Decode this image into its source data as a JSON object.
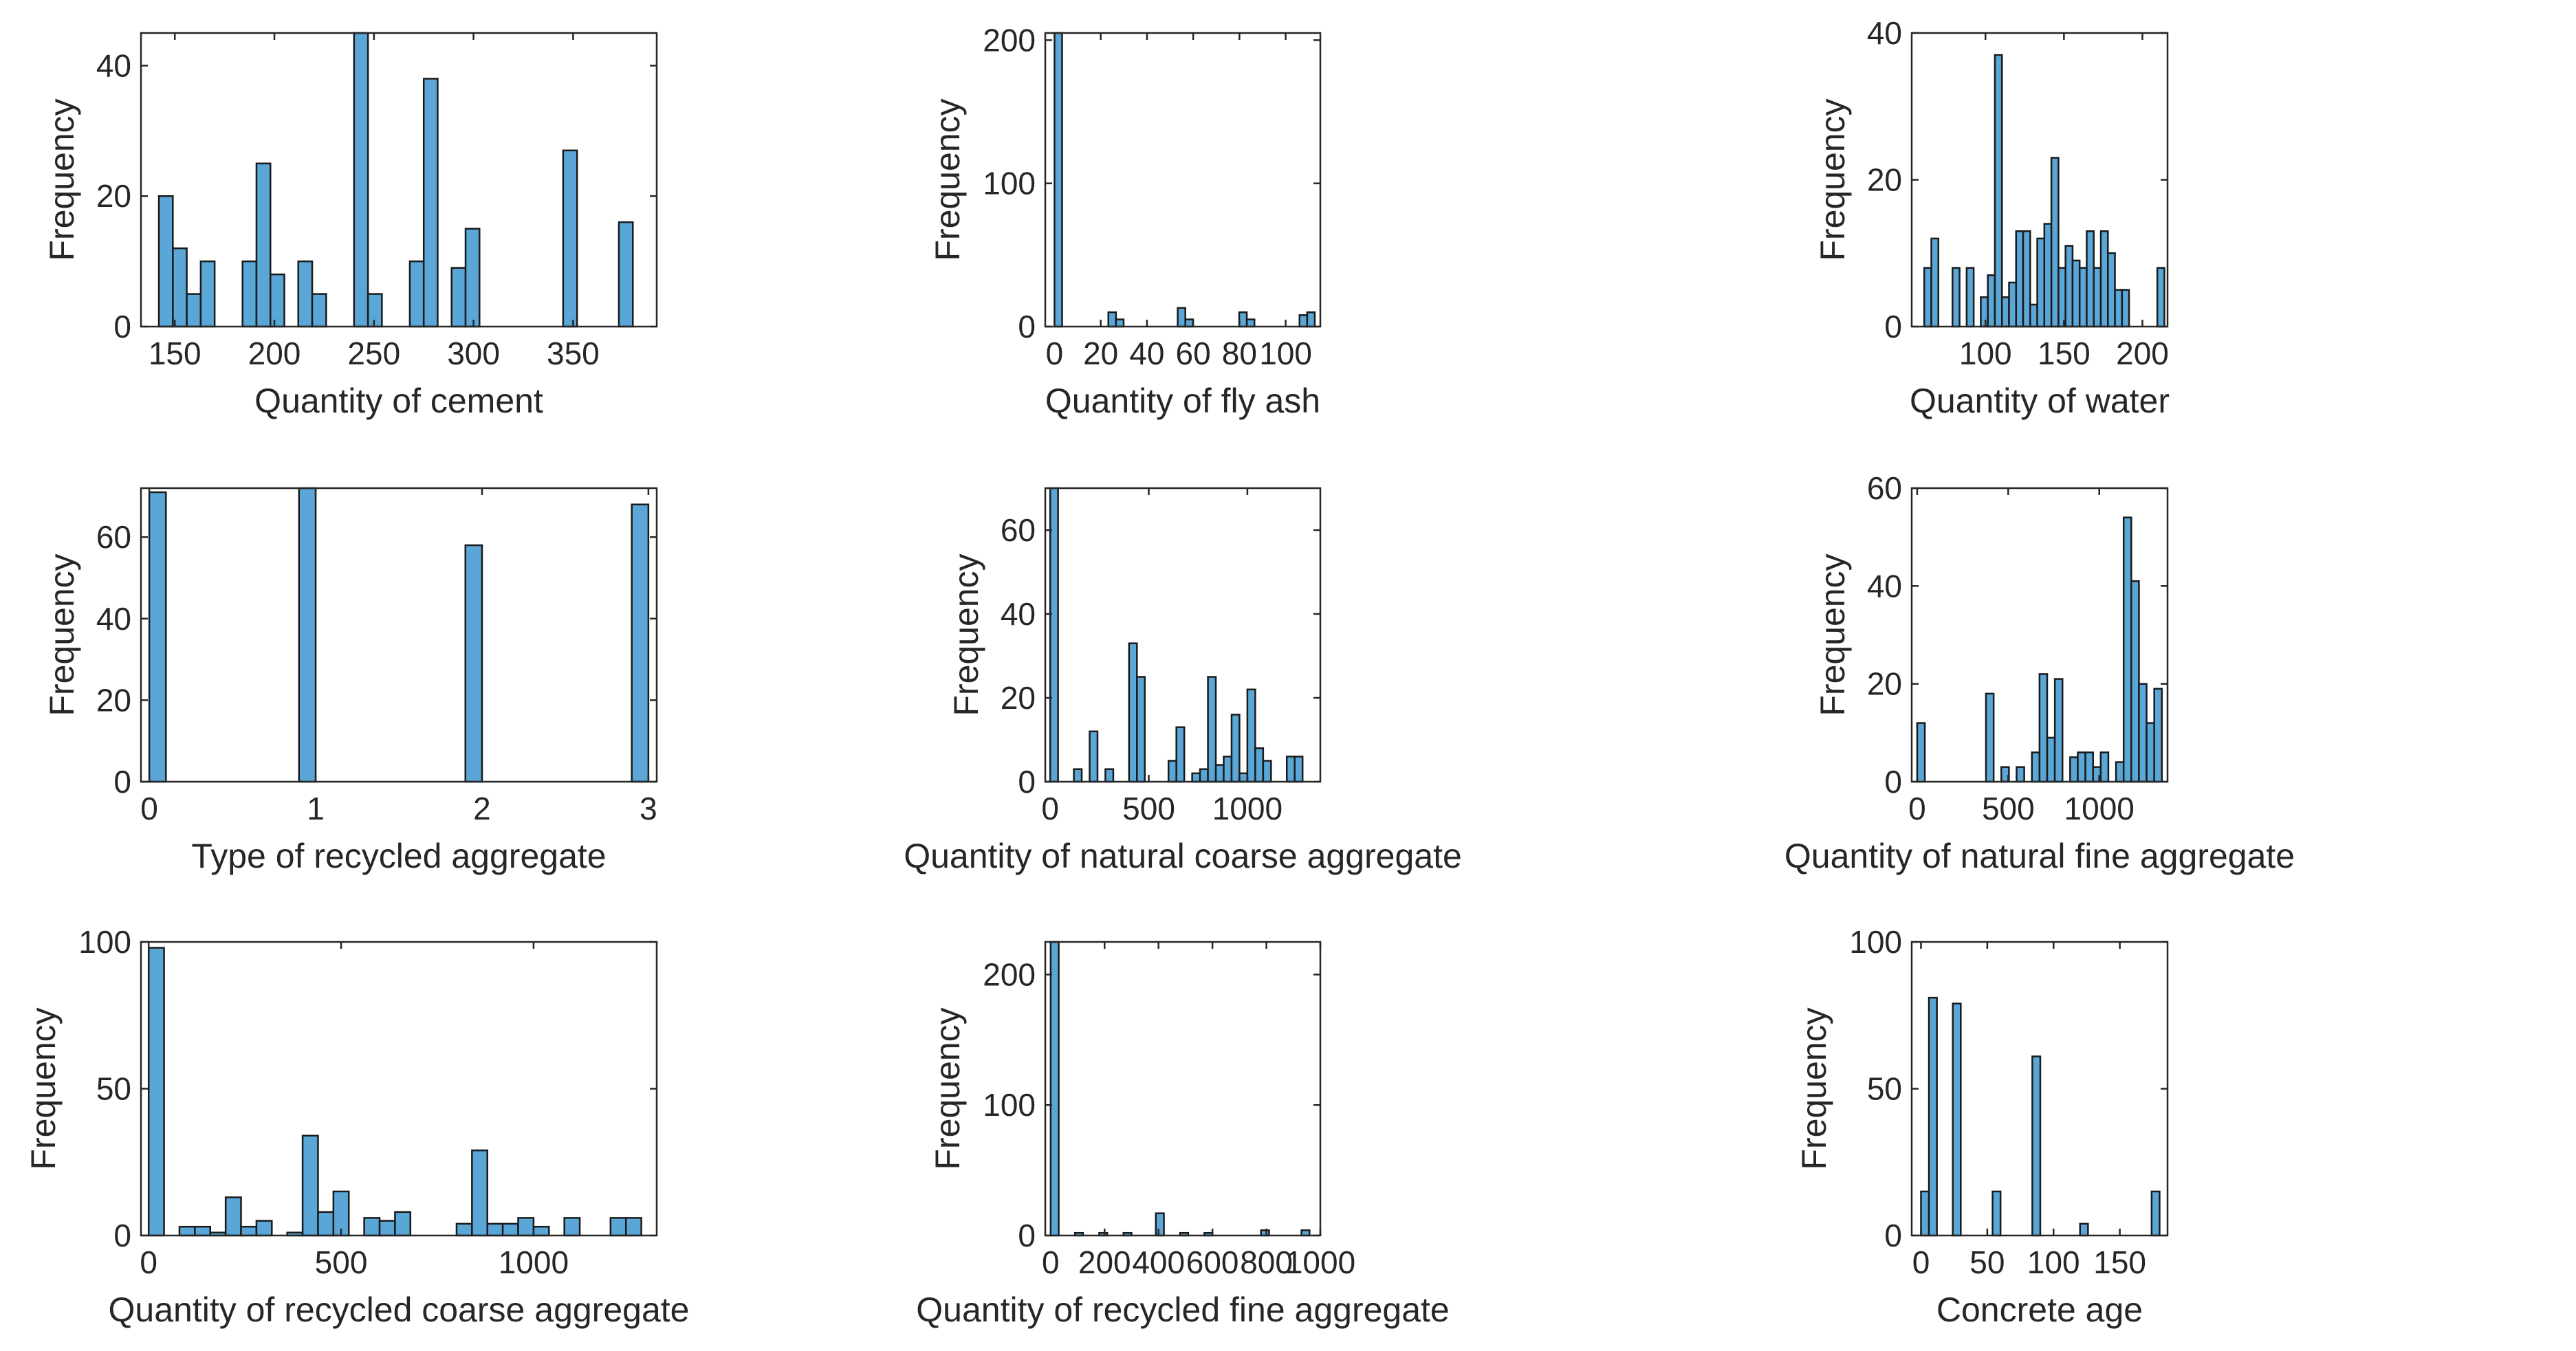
{
  "style": {
    "bar_color": "#5aa6d6",
    "bar_edge": "#1a1a1a",
    "axis_color": "#262626"
  },
  "chart_data": [
    {
      "type": "histogram",
      "xlabel": "Quantity of cement",
      "ylabel": "Frequency",
      "xlim": [
        133,
        392
      ],
      "ylim": [
        0,
        45
      ],
      "xticks": [
        150,
        200,
        250,
        300,
        350
      ],
      "yticks": [
        0,
        20,
        40
      ],
      "bins": [
        {
          "x0": 142,
          "x1": 149,
          "count": 20
        },
        {
          "x0": 149,
          "x1": 156,
          "count": 12
        },
        {
          "x0": 156,
          "x1": 163,
          "count": 5
        },
        {
          "x0": 163,
          "x1": 170,
          "count": 10
        },
        {
          "x0": 184,
          "x1": 191,
          "count": 10
        },
        {
          "x0": 191,
          "x1": 198,
          "count": 25
        },
        {
          "x0": 198,
          "x1": 205,
          "count": 8
        },
        {
          "x0": 212,
          "x1": 219,
          "count": 10
        },
        {
          "x0": 219,
          "x1": 226,
          "count": 5
        },
        {
          "x0": 240,
          "x1": 247,
          "count": 45
        },
        {
          "x0": 247,
          "x1": 254,
          "count": 5
        },
        {
          "x0": 268,
          "x1": 275,
          "count": 10
        },
        {
          "x0": 275,
          "x1": 282,
          "count": 38
        },
        {
          "x0": 289,
          "x1": 296,
          "count": 9
        },
        {
          "x0": 296,
          "x1": 303,
          "count": 15
        },
        {
          "x0": 345,
          "x1": 352,
          "count": 27
        },
        {
          "x0": 373,
          "x1": 380,
          "count": 16
        }
      ]
    },
    {
      "type": "histogram",
      "xlabel": "Quantity of fly ash",
      "ylabel": "Frequency",
      "xlim": [
        -4,
        115
      ],
      "ylim": [
        0,
        205
      ],
      "xticks": [
        0,
        20,
        40,
        60,
        80,
        100
      ],
      "yticks": [
        0,
        100,
        200
      ],
      "bins": [
        {
          "x0": 0,
          "x1": 3.3,
          "count": 205
        },
        {
          "x0": 23.3,
          "x1": 26.6,
          "count": 10
        },
        {
          "x0": 26.6,
          "x1": 29.9,
          "count": 5
        },
        {
          "x0": 53.3,
          "x1": 56.6,
          "count": 13
        },
        {
          "x0": 56.6,
          "x1": 59.9,
          "count": 5
        },
        {
          "x0": 79.9,
          "x1": 83.2,
          "count": 10
        },
        {
          "x0": 83.2,
          "x1": 86.5,
          "count": 5
        },
        {
          "x0": 106,
          "x1": 109.3,
          "count": 8
        },
        {
          "x0": 109.3,
          "x1": 112.6,
          "count": 10
        }
      ]
    },
    {
      "type": "histogram",
      "xlabel": "Quantity of water",
      "ylabel": "Frequency",
      "xlim": [
        53,
        216
      ],
      "ylim": [
        0,
        40
      ],
      "xticks": [
        100,
        150,
        200
      ],
      "yticks": [
        0,
        20,
        40
      ],
      "bins": [
        {
          "x0": 61,
          "x1": 65.5,
          "count": 8
        },
        {
          "x0": 65.5,
          "x1": 70,
          "count": 12
        },
        {
          "x0": 79,
          "x1": 83.5,
          "count": 8
        },
        {
          "x0": 88,
          "x1": 92.5,
          "count": 8
        },
        {
          "x0": 97,
          "x1": 101.5,
          "count": 4
        },
        {
          "x0": 101.5,
          "x1": 106,
          "count": 7
        },
        {
          "x0": 106,
          "x1": 110.5,
          "count": 37
        },
        {
          "x0": 110.5,
          "x1": 115,
          "count": 4
        },
        {
          "x0": 115,
          "x1": 119.5,
          "count": 6
        },
        {
          "x0": 119.5,
          "x1": 124,
          "count": 13
        },
        {
          "x0": 124,
          "x1": 128.5,
          "count": 13
        },
        {
          "x0": 128.5,
          "x1": 133,
          "count": 3
        },
        {
          "x0": 133,
          "x1": 137.5,
          "count": 12
        },
        {
          "x0": 137.5,
          "x1": 142,
          "count": 14
        },
        {
          "x0": 142,
          "x1": 146.5,
          "count": 23
        },
        {
          "x0": 146.5,
          "x1": 151,
          "count": 8
        },
        {
          "x0": 151,
          "x1": 155.5,
          "count": 11
        },
        {
          "x0": 155.5,
          "x1": 160,
          "count": 9
        },
        {
          "x0": 160,
          "x1": 164.5,
          "count": 8
        },
        {
          "x0": 164.5,
          "x1": 169,
          "count": 13
        },
        {
          "x0": 169,
          "x1": 173.5,
          "count": 8
        },
        {
          "x0": 173.5,
          "x1": 178,
          "count": 13
        },
        {
          "x0": 178,
          "x1": 182.5,
          "count": 10
        },
        {
          "x0": 182.5,
          "x1": 187,
          "count": 5
        },
        {
          "x0": 187,
          "x1": 191.5,
          "count": 5
        },
        {
          "x0": 209.5,
          "x1": 214,
          "count": 8
        }
      ]
    },
    {
      "type": "histogram",
      "xlabel": "Type of recycled aggregate",
      "ylabel": "Frequency",
      "xlim": [
        -0.05,
        3.05
      ],
      "ylim": [
        0,
        72
      ],
      "xticks": [
        0,
        1,
        2,
        3
      ],
      "yticks": [
        0,
        20,
        40,
        60
      ],
      "bins": [
        {
          "x0": 0,
          "x1": 0.1,
          "count": 71
        },
        {
          "x0": 0.9,
          "x1": 1,
          "count": 72
        },
        {
          "x0": 1.9,
          "x1": 2,
          "count": 58
        },
        {
          "x0": 2.9,
          "x1": 3,
          "count": 68
        }
      ]
    },
    {
      "type": "histogram",
      "xlabel": "Quantity of natural coarse aggregate",
      "ylabel": "Frequency",
      "xlim": [
        -25,
        1370
      ],
      "ylim": [
        0,
        70
      ],
      "xticks": [
        0,
        500,
        1000
      ],
      "yticks": [
        0,
        20,
        40,
        60
      ],
      "bins": [
        {
          "x0": 0,
          "x1": 40,
          "count": 70
        },
        {
          "x0": 120,
          "x1": 160,
          "count": 3
        },
        {
          "x0": 200,
          "x1": 240,
          "count": 12
        },
        {
          "x0": 280,
          "x1": 320,
          "count": 3
        },
        {
          "x0": 400,
          "x1": 440,
          "count": 33
        },
        {
          "x0": 440,
          "x1": 480,
          "count": 25
        },
        {
          "x0": 600,
          "x1": 640,
          "count": 5
        },
        {
          "x0": 640,
          "x1": 680,
          "count": 13
        },
        {
          "x0": 720,
          "x1": 760,
          "count": 2
        },
        {
          "x0": 760,
          "x1": 800,
          "count": 3
        },
        {
          "x0": 800,
          "x1": 840,
          "count": 25
        },
        {
          "x0": 840,
          "x1": 880,
          "count": 4
        },
        {
          "x0": 880,
          "x1": 920,
          "count": 6
        },
        {
          "x0": 920,
          "x1": 960,
          "count": 16
        },
        {
          "x0": 960,
          "x1": 1000,
          "count": 2
        },
        {
          "x0": 1000,
          "x1": 1040,
          "count": 22
        },
        {
          "x0": 1040,
          "x1": 1080,
          "count": 8
        },
        {
          "x0": 1080,
          "x1": 1120,
          "count": 5
        },
        {
          "x0": 1200,
          "x1": 1240,
          "count": 6
        },
        {
          "x0": 1240,
          "x1": 1280,
          "count": 6
        }
      ]
    },
    {
      "type": "histogram",
      "xlabel": "Quantity of natural fine aggregate",
      "ylabel": "Frequency",
      "xlim": [
        -30,
        1375
      ],
      "ylim": [
        0,
        60
      ],
      "xticks": [
        0,
        500,
        1000
      ],
      "yticks": [
        0,
        20,
        40,
        60
      ],
      "bins": [
        {
          "x0": 0,
          "x1": 42,
          "count": 12
        },
        {
          "x0": 378,
          "x1": 420,
          "count": 18
        },
        {
          "x0": 462,
          "x1": 504,
          "count": 3
        },
        {
          "x0": 546,
          "x1": 588,
          "count": 3
        },
        {
          "x0": 630,
          "x1": 672,
          "count": 6
        },
        {
          "x0": 672,
          "x1": 714,
          "count": 22
        },
        {
          "x0": 714,
          "x1": 756,
          "count": 9
        },
        {
          "x0": 756,
          "x1": 798,
          "count": 21
        },
        {
          "x0": 840,
          "x1": 882,
          "count": 5
        },
        {
          "x0": 882,
          "x1": 924,
          "count": 6
        },
        {
          "x0": 924,
          "x1": 966,
          "count": 6
        },
        {
          "x0": 966,
          "x1": 1008,
          "count": 3
        },
        {
          "x0": 1008,
          "x1": 1050,
          "count": 6
        },
        {
          "x0": 1092,
          "x1": 1134,
          "count": 4
        },
        {
          "x0": 1134,
          "x1": 1176,
          "count": 54
        },
        {
          "x0": 1176,
          "x1": 1218,
          "count": 41
        },
        {
          "x0": 1218,
          "x1": 1260,
          "count": 20
        },
        {
          "x0": 1260,
          "x1": 1302,
          "count": 12
        },
        {
          "x0": 1302,
          "x1": 1344,
          "count": 19
        }
      ]
    },
    {
      "type": "histogram",
      "xlabel": "Quantity of recycled coarse aggregate",
      "ylabel": "Frequency",
      "xlim": [
        -20,
        1320
      ],
      "ylim": [
        0,
        100
      ],
      "xticks": [
        0,
        500,
        1000
      ],
      "yticks": [
        0,
        50,
        100
      ],
      "bins": [
        {
          "x0": 0,
          "x1": 40,
          "count": 98
        },
        {
          "x0": 80,
          "x1": 120,
          "count": 3
        },
        {
          "x0": 120,
          "x1": 160,
          "count": 3
        },
        {
          "x0": 160,
          "x1": 200,
          "count": 1
        },
        {
          "x0": 200,
          "x1": 240,
          "count": 13
        },
        {
          "x0": 240,
          "x1": 280,
          "count": 3
        },
        {
          "x0": 280,
          "x1": 320,
          "count": 5
        },
        {
          "x0": 360,
          "x1": 400,
          "count": 1
        },
        {
          "x0": 400,
          "x1": 440,
          "count": 34
        },
        {
          "x0": 440,
          "x1": 480,
          "count": 8
        },
        {
          "x0": 480,
          "x1": 520,
          "count": 15
        },
        {
          "x0": 560,
          "x1": 600,
          "count": 6
        },
        {
          "x0": 600,
          "x1": 640,
          "count": 5
        },
        {
          "x0": 640,
          "x1": 680,
          "count": 8
        },
        {
          "x0": 800,
          "x1": 840,
          "count": 4
        },
        {
          "x0": 840,
          "x1": 880,
          "count": 29
        },
        {
          "x0": 880,
          "x1": 920,
          "count": 4
        },
        {
          "x0": 920,
          "x1": 960,
          "count": 4
        },
        {
          "x0": 960,
          "x1": 1000,
          "count": 6
        },
        {
          "x0": 1000,
          "x1": 1040,
          "count": 3
        },
        {
          "x0": 1080,
          "x1": 1120,
          "count": 6
        },
        {
          "x0": 1200,
          "x1": 1240,
          "count": 6
        },
        {
          "x0": 1240,
          "x1": 1280,
          "count": 6
        }
      ]
    },
    {
      "type": "histogram",
      "xlabel": "Quantity of recycled fine aggregate",
      "ylabel": "Frequency",
      "xlim": [
        -20,
        1000
      ],
      "ylim": [
        0,
        225
      ],
      "xticks": [
        0,
        200,
        400,
        600,
        800,
        1000
      ],
      "yticks": [
        0,
        100,
        200
      ],
      "bins": [
        {
          "x0": 0,
          "x1": 30,
          "count": 225
        },
        {
          "x0": 90,
          "x1": 120,
          "count": 2
        },
        {
          "x0": 180,
          "x1": 210,
          "count": 2
        },
        {
          "x0": 270,
          "x1": 300,
          "count": 2
        },
        {
          "x0": 390,
          "x1": 420,
          "count": 17
        },
        {
          "x0": 480,
          "x1": 510,
          "count": 2
        },
        {
          "x0": 570,
          "x1": 600,
          "count": 2
        },
        {
          "x0": 780,
          "x1": 810,
          "count": 4
        },
        {
          "x0": 930,
          "x1": 960,
          "count": 4
        }
      ]
    },
    {
      "type": "histogram",
      "xlabel": "Concrete age",
      "ylabel": "Frequency",
      "xlim": [
        -7,
        186
      ],
      "ylim": [
        0,
        100
      ],
      "xticks": [
        0,
        50,
        100,
        150
      ],
      "yticks": [
        0,
        50,
        100
      ],
      "bins": [
        {
          "x0": 0,
          "x1": 6,
          "count": 15
        },
        {
          "x0": 6,
          "x1": 12,
          "count": 81
        },
        {
          "x0": 24,
          "x1": 30,
          "count": 79
        },
        {
          "x0": 54,
          "x1": 60,
          "count": 15
        },
        {
          "x0": 84,
          "x1": 90,
          "count": 61
        },
        {
          "x0": 120,
          "x1": 126,
          "count": 4
        },
        {
          "x0": 174,
          "x1": 180,
          "count": 15
        }
      ]
    }
  ]
}
